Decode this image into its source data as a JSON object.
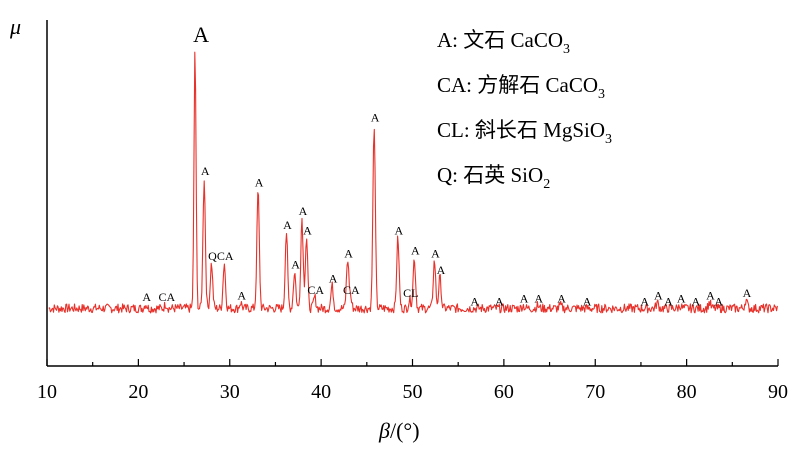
{
  "chart_data": {
    "type": "line",
    "title": "",
    "xlabel": "β/(°)",
    "xlabel_parts": {
      "symbol": "β",
      "unit": "/(°)"
    },
    "ylabel": "μ",
    "xlim": [
      10,
      90
    ],
    "ylim": [
      0,
      100
    ],
    "x_ticks": [
      "10",
      "20",
      "30",
      "40",
      "50",
      "60",
      "70",
      "80",
      "90"
    ],
    "y_ticks": [],
    "grid": false,
    "line_color": "#e8312a",
    "baseline": 8,
    "noise_amplitude": 1.6,
    "peaks": [
      {
        "x": 20.8,
        "y": 9.5,
        "label": "A"
      },
      {
        "x": 23.0,
        "y": 9.5,
        "label": "CA"
      },
      {
        "x": 26.2,
        "y": 100,
        "label": "A",
        "big": true
      },
      {
        "x": 27.2,
        "y": 54,
        "label": "A"
      },
      {
        "x": 28.0,
        "y": 24,
        "label": "Q"
      },
      {
        "x": 29.4,
        "y": 24,
        "label": "CA"
      },
      {
        "x": 31.2,
        "y": 10,
        "label": "A"
      },
      {
        "x": 33.1,
        "y": 50,
        "label": "A"
      },
      {
        "x": 36.2,
        "y": 35,
        "label": "A"
      },
      {
        "x": 37.1,
        "y": 21,
        "label": "A"
      },
      {
        "x": 37.9,
        "y": 40,
        "label": "A"
      },
      {
        "x": 38.4,
        "y": 33,
        "label": "A"
      },
      {
        "x": 39.3,
        "y": 12,
        "label": "CA"
      },
      {
        "x": 41.2,
        "y": 16,
        "label": "A"
      },
      {
        "x": 42.9,
        "y": 25,
        "label": "A"
      },
      {
        "x": 43.2,
        "y": 12,
        "label": "CA"
      },
      {
        "x": 45.8,
        "y": 73,
        "label": "A"
      },
      {
        "x": 48.4,
        "y": 33,
        "label": "A"
      },
      {
        "x": 49.7,
        "y": 11,
        "label": "CL"
      },
      {
        "x": 50.2,
        "y": 26,
        "label": "A"
      },
      {
        "x": 52.4,
        "y": 25,
        "label": "A"
      },
      {
        "x": 53.0,
        "y": 19,
        "label": "A"
      },
      {
        "x": 56.7,
        "y": 8,
        "label": "A"
      },
      {
        "x": 59.4,
        "y": 8,
        "label": "A"
      },
      {
        "x": 62.1,
        "y": 9,
        "label": "A"
      },
      {
        "x": 63.7,
        "y": 9,
        "label": "A"
      },
      {
        "x": 66.2,
        "y": 9,
        "label": "A"
      },
      {
        "x": 69.0,
        "y": 8,
        "label": "A"
      },
      {
        "x": 75.3,
        "y": 8,
        "label": "A"
      },
      {
        "x": 76.8,
        "y": 10,
        "label": "A"
      },
      {
        "x": 77.9,
        "y": 8,
        "label": "A"
      },
      {
        "x": 79.3,
        "y": 9,
        "label": "A"
      },
      {
        "x": 80.9,
        "y": 8,
        "label": "A"
      },
      {
        "x": 82.5,
        "y": 10,
        "label": "A"
      },
      {
        "x": 83.4,
        "y": 8,
        "label": "A"
      },
      {
        "x": 86.5,
        "y": 11,
        "label": "A"
      }
    ],
    "legend": [
      {
        "key": "A",
        "prefix": "A: ",
        "name": "文石",
        "formula": "CaCO",
        "sub": "3"
      },
      {
        "key": "CA",
        "prefix": "CA: ",
        "name": "方解石",
        "formula": "CaCO",
        "sub": "3"
      },
      {
        "key": "CL",
        "prefix": "CL: ",
        "name": "斜长石",
        "formula": "MgSiO",
        "sub": "3"
      },
      {
        "key": "Q",
        "prefix": "Q: ",
        "name": "石英",
        "formula": "SiO",
        "sub": "2"
      }
    ]
  }
}
